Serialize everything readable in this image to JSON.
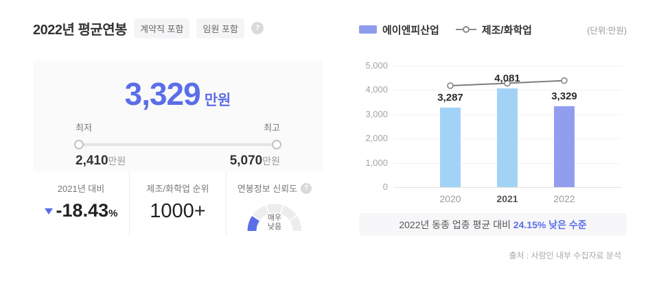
{
  "page": {
    "title": "2022년 평균연봉",
    "badges": [
      "계약직 포함",
      "임원 포함"
    ],
    "help_icon": "?"
  },
  "salary_card": {
    "amount": "3,329",
    "unit": "만원",
    "min_label": "최저",
    "max_label": "최고",
    "min_value": "2,410",
    "min_unit": "만원",
    "max_value": "5,070",
    "max_unit": "만원"
  },
  "stats": {
    "yoy": {
      "label": "2021년 대비",
      "direction": "down",
      "value": "-18.43",
      "unit": "%"
    },
    "rank": {
      "label": "제조/화학업 순위",
      "value": "1000+"
    },
    "reliability": {
      "label": "연봉정보 신뢰도",
      "help_icon": "?",
      "level_line1": "매우",
      "level_line2": "낮음",
      "segments": 5,
      "active_segments": 1
    }
  },
  "chart": {
    "legend": [
      {
        "type": "bar",
        "label": "에이엔피산업"
      },
      {
        "type": "line",
        "label": "제조/화학업"
      }
    ],
    "unit_note": "(단위:만원)"
  },
  "chart_data": {
    "type": "bar",
    "categories": [
      "2020",
      "2021",
      "2022"
    ],
    "series": [
      {
        "name": "에이엔피산업",
        "type": "bar",
        "values": [
          3287,
          4081,
          3329
        ],
        "labels": [
          "3,287",
          "4,081",
          "3,329"
        ],
        "colors": [
          "#a3d2f7",
          "#a3d2f7",
          "#919ef0"
        ]
      },
      {
        "name": "제조/화학업",
        "type": "line",
        "values": [
          4180,
          4280,
          4389
        ]
      }
    ],
    "ylim": [
      0,
      5000
    ],
    "yticks": [
      0,
      1000,
      2000,
      3000,
      4000,
      5000
    ],
    "ytick_labels": [
      "0",
      "1,000",
      "2,000",
      "3,000",
      "4,000",
      "5,000"
    ],
    "grid": true,
    "legend_position": "top",
    "emphasized_category": "2021"
  },
  "caption": {
    "prefix": "2022년 동종 업종 평균 대비 ",
    "highlight": "24.15% 낮은 수준"
  },
  "source": "출처 : 사람인 내부 수집자료 분석",
  "colors": {
    "accent_blue": "#5b6ee8",
    "bar_default": "#a3d2f7",
    "bar_highlight": "#919ef0",
    "legend_bar": "#8f9cee",
    "line": "#7d7d7d",
    "gauge_inactive": "#ededed"
  }
}
